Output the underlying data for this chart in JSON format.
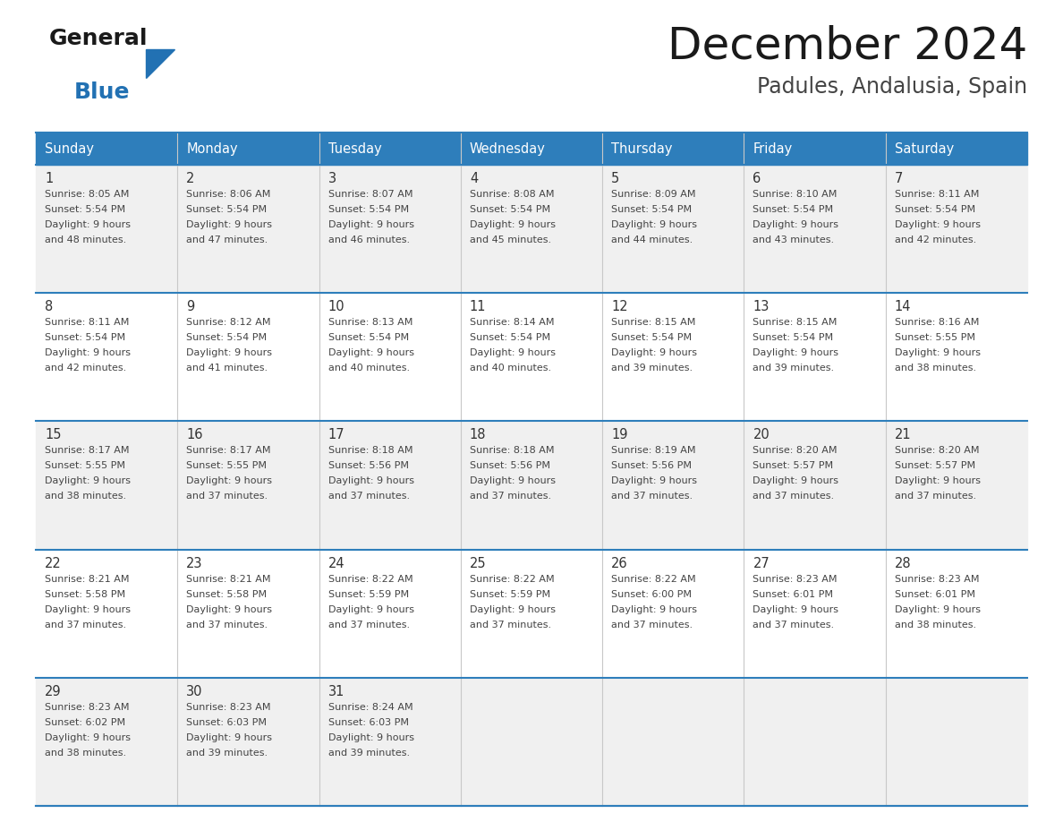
{
  "title": "December 2024",
  "subtitle": "Padules, Andalusia, Spain",
  "header_bg": "#2E7EBB",
  "header_text_color": "#FFFFFF",
  "day_names": [
    "Sunday",
    "Monday",
    "Tuesday",
    "Wednesday",
    "Thursday",
    "Friday",
    "Saturday"
  ],
  "cell_bg_light": "#F0F0F0",
  "cell_bg_white": "#FFFFFF",
  "separator_color": "#2E7EBB",
  "text_color": "#444444",
  "date_color": "#333333",
  "calendar_data": [
    [
      {
        "day": 1,
        "sunrise": "8:05 AM",
        "sunset": "5:54 PM",
        "daylight": "9 hours and 48 minutes"
      },
      {
        "day": 2,
        "sunrise": "8:06 AM",
        "sunset": "5:54 PM",
        "daylight": "9 hours and 47 minutes"
      },
      {
        "day": 3,
        "sunrise": "8:07 AM",
        "sunset": "5:54 PM",
        "daylight": "9 hours and 46 minutes"
      },
      {
        "day": 4,
        "sunrise": "8:08 AM",
        "sunset": "5:54 PM",
        "daylight": "9 hours and 45 minutes"
      },
      {
        "day": 5,
        "sunrise": "8:09 AM",
        "sunset": "5:54 PM",
        "daylight": "9 hours and 44 minutes"
      },
      {
        "day": 6,
        "sunrise": "8:10 AM",
        "sunset": "5:54 PM",
        "daylight": "9 hours and 43 minutes"
      },
      {
        "day": 7,
        "sunrise": "8:11 AM",
        "sunset": "5:54 PM",
        "daylight": "9 hours and 42 minutes"
      }
    ],
    [
      {
        "day": 8,
        "sunrise": "8:11 AM",
        "sunset": "5:54 PM",
        "daylight": "9 hours and 42 minutes"
      },
      {
        "day": 9,
        "sunrise": "8:12 AM",
        "sunset": "5:54 PM",
        "daylight": "9 hours and 41 minutes"
      },
      {
        "day": 10,
        "sunrise": "8:13 AM",
        "sunset": "5:54 PM",
        "daylight": "9 hours and 40 minutes"
      },
      {
        "day": 11,
        "sunrise": "8:14 AM",
        "sunset": "5:54 PM",
        "daylight": "9 hours and 40 minutes"
      },
      {
        "day": 12,
        "sunrise": "8:15 AM",
        "sunset": "5:54 PM",
        "daylight": "9 hours and 39 minutes"
      },
      {
        "day": 13,
        "sunrise": "8:15 AM",
        "sunset": "5:54 PM",
        "daylight": "9 hours and 39 minutes"
      },
      {
        "day": 14,
        "sunrise": "8:16 AM",
        "sunset": "5:55 PM",
        "daylight": "9 hours and 38 minutes"
      }
    ],
    [
      {
        "day": 15,
        "sunrise": "8:17 AM",
        "sunset": "5:55 PM",
        "daylight": "9 hours and 38 minutes"
      },
      {
        "day": 16,
        "sunrise": "8:17 AM",
        "sunset": "5:55 PM",
        "daylight": "9 hours and 37 minutes"
      },
      {
        "day": 17,
        "sunrise": "8:18 AM",
        "sunset": "5:56 PM",
        "daylight": "9 hours and 37 minutes"
      },
      {
        "day": 18,
        "sunrise": "8:18 AM",
        "sunset": "5:56 PM",
        "daylight": "9 hours and 37 minutes"
      },
      {
        "day": 19,
        "sunrise": "8:19 AM",
        "sunset": "5:56 PM",
        "daylight": "9 hours and 37 minutes"
      },
      {
        "day": 20,
        "sunrise": "8:20 AM",
        "sunset": "5:57 PM",
        "daylight": "9 hours and 37 minutes"
      },
      {
        "day": 21,
        "sunrise": "8:20 AM",
        "sunset": "5:57 PM",
        "daylight": "9 hours and 37 minutes"
      }
    ],
    [
      {
        "day": 22,
        "sunrise": "8:21 AM",
        "sunset": "5:58 PM",
        "daylight": "9 hours and 37 minutes"
      },
      {
        "day": 23,
        "sunrise": "8:21 AM",
        "sunset": "5:58 PM",
        "daylight": "9 hours and 37 minutes"
      },
      {
        "day": 24,
        "sunrise": "8:22 AM",
        "sunset": "5:59 PM",
        "daylight": "9 hours and 37 minutes"
      },
      {
        "day": 25,
        "sunrise": "8:22 AM",
        "sunset": "5:59 PM",
        "daylight": "9 hours and 37 minutes"
      },
      {
        "day": 26,
        "sunrise": "8:22 AM",
        "sunset": "6:00 PM",
        "daylight": "9 hours and 37 minutes"
      },
      {
        "day": 27,
        "sunrise": "8:23 AM",
        "sunset": "6:01 PM",
        "daylight": "9 hours and 37 minutes"
      },
      {
        "day": 28,
        "sunrise": "8:23 AM",
        "sunset": "6:01 PM",
        "daylight": "9 hours and 38 minutes"
      }
    ],
    [
      {
        "day": 29,
        "sunrise": "8:23 AM",
        "sunset": "6:02 PM",
        "daylight": "9 hours and 38 minutes"
      },
      {
        "day": 30,
        "sunrise": "8:23 AM",
        "sunset": "6:03 PM",
        "daylight": "9 hours and 39 minutes"
      },
      {
        "day": 31,
        "sunrise": "8:24 AM",
        "sunset": "6:03 PM",
        "daylight": "9 hours and 39 minutes"
      },
      null,
      null,
      null,
      null
    ]
  ],
  "fig_width": 11.88,
  "fig_height": 9.18,
  "logo_general_color": "#1a1a1a",
  "logo_blue_color": "#2271B3",
  "logo_triangle_color": "#2271B3"
}
